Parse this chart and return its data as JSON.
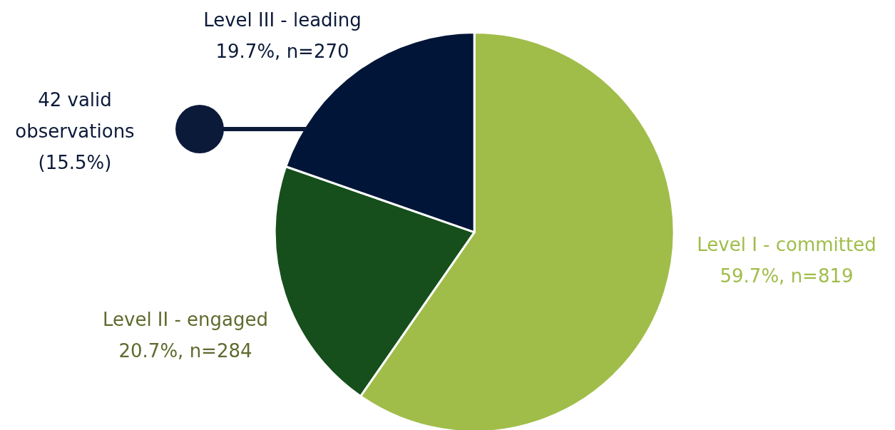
{
  "chart_data": {
    "type": "pie",
    "categories": [
      "Level I - committed",
      "Level II - engaged",
      "Level III - leading"
    ],
    "values": [
      819,
      284,
      270
    ],
    "value_labels": [
      "59.7%, n=819",
      "20.7%, n=284",
      "19.7%, n=270"
    ],
    "colors": [
      "#a0bd4a",
      "#164f1c",
      "#001537"
    ],
    "annotations": [
      "42 valid observations (15.5%)"
    ],
    "legend": false
  }
}
